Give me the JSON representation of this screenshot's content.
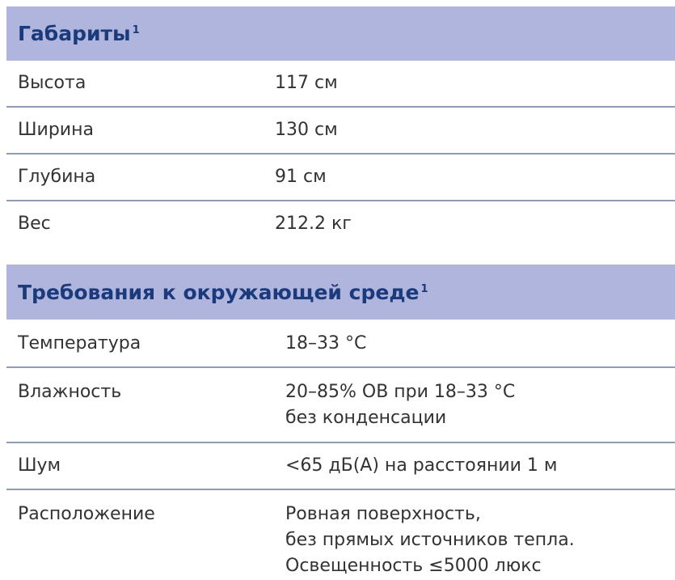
{
  "sections": [
    {
      "title": "Габариты",
      "footnote": "1",
      "rows": [
        {
          "label": "Высота",
          "value": "117 см"
        },
        {
          "label": "Ширина",
          "value": "130 см"
        },
        {
          "label": "Глубина",
          "value": "91 см"
        },
        {
          "label": "Вес",
          "value": "212.2 кг"
        }
      ]
    },
    {
      "title": "Требования к окружающей среде",
      "footnote": "1",
      "rows": [
        {
          "label": "Температура",
          "value": "18–33 °C"
        },
        {
          "label": "Влажность",
          "value": "20–85% ОВ при 18–33 °C\nбез конденсации"
        },
        {
          "label": "Шум",
          "value": "<65 дБ(А) на расстоянии 1 м"
        },
        {
          "label": "Расположение",
          "value": "Ровная поверхность,\nбез прямых источников тепла.\nОсвещенность  ≤5000 люкс"
        }
      ]
    }
  ],
  "colors": {
    "header_bg": "#afb5dc",
    "header_text": "#1b3a7c",
    "divider": "#8e9db4"
  }
}
